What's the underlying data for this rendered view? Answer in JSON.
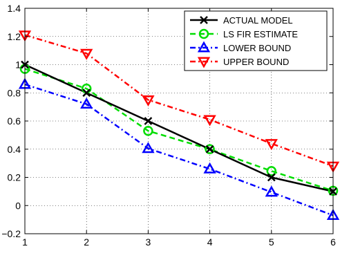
{
  "chart_data": {
    "type": "line",
    "title": "",
    "xlabel": "",
    "ylabel": "",
    "xlim": [
      1,
      6
    ],
    "ylim": [
      -0.2,
      1.4
    ],
    "xticks": [
      1,
      2,
      3,
      4,
      5,
      6
    ],
    "yticks": [
      -0.2,
      0,
      0.2,
      0.4,
      0.6,
      0.8,
      1,
      1.2,
      1.4
    ],
    "xtick_labels": [
      "1",
      "2",
      "3",
      "4",
      "5",
      "6"
    ],
    "ytick_labels": [
      "−0.2",
      "0",
      "0.2",
      "0.4",
      "0.6",
      "0.8",
      "1",
      "1.2",
      "1.4"
    ],
    "grid": true,
    "legend_position": "top-right",
    "x": [
      1,
      2,
      3,
      4,
      5,
      6
    ],
    "series": [
      {
        "name": "ACTUAL MODEL",
        "values": [
          1.0,
          0.8,
          0.6,
          0.4,
          0.2,
          0.1
        ],
        "color": "#000000",
        "line_style": "solid",
        "marker": "x"
      },
      {
        "name": "LS FIR ESTIMATE",
        "values": [
          0.97,
          0.83,
          0.53,
          0.4,
          0.245,
          0.105
        ],
        "color": "#00dd00",
        "line_style": "dashed",
        "marker": "circle"
      },
      {
        "name": "LOWER BOUND",
        "values": [
          0.86,
          0.72,
          0.405,
          0.26,
          0.095,
          -0.07
        ],
        "color": "#0000ff",
        "line_style": "dash-dot",
        "marker": "triangle-up"
      },
      {
        "name": "UPPER BOUND",
        "values": [
          1.21,
          1.08,
          0.75,
          0.61,
          0.44,
          0.28
        ],
        "color": "#ff0000",
        "line_style": "dash-dot",
        "marker": "triangle-down"
      }
    ]
  }
}
